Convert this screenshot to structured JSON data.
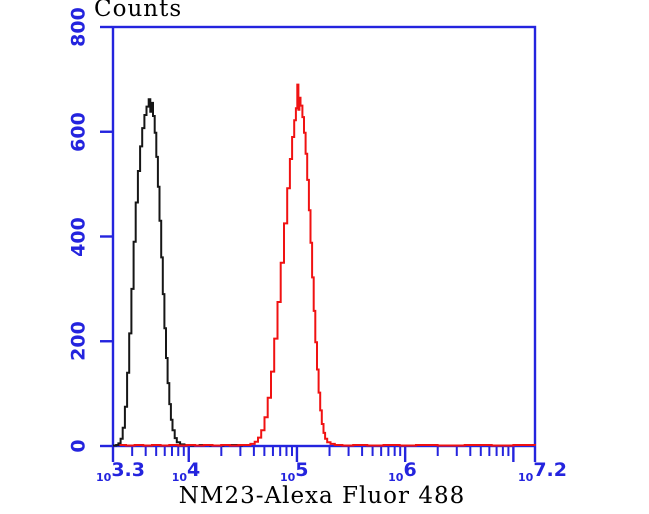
{
  "titles": {
    "y_axis": "Counts",
    "x_axis": "NM23-Alexa Fluor 488"
  },
  "colors": {
    "axis": "#2424DE",
    "tick_label": "#2424DE",
    "title_text": "#000000",
    "series_black": "#161616",
    "series_red": "#F01212",
    "background": "#FFFFFF"
  },
  "chart_data": {
    "type": "line",
    "subtype": "flow-cytometry-histogram-overlay",
    "title": "",
    "xlabel": "NM23-Alexa Fluor 488",
    "ylabel": "Counts",
    "x_scale": "log10",
    "xlim_log10": [
      3.3,
      7.2
    ],
    "ylim": [
      0,
      800
    ],
    "grid": false,
    "legend": "none",
    "x_axis": {
      "base_text": "10",
      "major_ticks_log10": [
        3.3,
        4,
        5,
        6,
        7,
        7.2
      ],
      "labels": [
        {
          "log10": 3.3,
          "exponent": "3.3"
        },
        {
          "log10": 4,
          "exponent": "4"
        },
        {
          "log10": 5,
          "exponent": "5"
        },
        {
          "log10": 6,
          "exponent": "6"
        },
        {
          "log10": 7.2,
          "exponent": "7.2"
        }
      ],
      "minor_tick_rule": "multiples 2-9 of each decade between 10^3.3 and 10^7.2"
    },
    "y_axis": {
      "ticks": [
        0,
        200,
        400,
        600,
        800
      ],
      "tick_labels": [
        "0",
        "200",
        "400",
        "600",
        "800"
      ]
    },
    "series": [
      {
        "name": "black histogram (left / control peak)",
        "color": "#161616",
        "peak_log10_x": 3.63,
        "peak_counts": 662,
        "points_log10x_counts": [
          [
            3.3,
            1
          ],
          [
            3.33,
            2
          ],
          [
            3.35,
            5
          ],
          [
            3.37,
            14
          ],
          [
            3.39,
            35
          ],
          [
            3.41,
            75
          ],
          [
            3.43,
            140
          ],
          [
            3.45,
            215
          ],
          [
            3.47,
            300
          ],
          [
            3.49,
            390
          ],
          [
            3.51,
            465
          ],
          [
            3.53,
            525
          ],
          [
            3.55,
            572
          ],
          [
            3.57,
            607
          ],
          [
            3.59,
            632
          ],
          [
            3.61,
            648
          ],
          [
            3.63,
            662
          ],
          [
            3.645,
            638
          ],
          [
            3.655,
            655
          ],
          [
            3.67,
            630
          ],
          [
            3.685,
            598
          ],
          [
            3.7,
            552
          ],
          [
            3.715,
            495
          ],
          [
            3.73,
            430
          ],
          [
            3.745,
            360
          ],
          [
            3.76,
            290
          ],
          [
            3.775,
            225
          ],
          [
            3.79,
            168
          ],
          [
            3.805,
            120
          ],
          [
            3.82,
            80
          ],
          [
            3.835,
            50
          ],
          [
            3.85,
            30
          ],
          [
            3.87,
            15
          ],
          [
            3.89,
            7
          ],
          [
            3.92,
            3
          ],
          [
            3.96,
            2
          ],
          [
            4.02,
            1
          ],
          [
            4.1,
            2
          ],
          [
            4.2,
            1
          ],
          [
            4.32,
            2
          ],
          [
            4.45,
            1
          ],
          [
            4.5,
            1
          ]
        ]
      },
      {
        "name": "red histogram (right / stained peak)",
        "color": "#F01212",
        "peak_log10_x": 5.0,
        "peak_counts": 690,
        "points_log10x_counts": [
          [
            3.36,
            2
          ],
          [
            3.42,
            1
          ],
          [
            3.5,
            2
          ],
          [
            3.58,
            1
          ],
          [
            3.66,
            2
          ],
          [
            3.74,
            1
          ],
          [
            3.82,
            2
          ],
          [
            3.9,
            1
          ],
          [
            3.98,
            2
          ],
          [
            4.06,
            1
          ],
          [
            4.14,
            2
          ],
          [
            4.22,
            1
          ],
          [
            4.3,
            2
          ],
          [
            4.38,
            1
          ],
          [
            4.46,
            2
          ],
          [
            4.52,
            2
          ],
          [
            4.57,
            4
          ],
          [
            4.61,
            8
          ],
          [
            4.64,
            16
          ],
          [
            4.67,
            30
          ],
          [
            4.7,
            55
          ],
          [
            4.73,
            92
          ],
          [
            4.76,
            142
          ],
          [
            4.79,
            205
          ],
          [
            4.82,
            275
          ],
          [
            4.85,
            350
          ],
          [
            4.88,
            425
          ],
          [
            4.91,
            492
          ],
          [
            4.935,
            548
          ],
          [
            4.955,
            590
          ],
          [
            4.975,
            622
          ],
          [
            4.99,
            645
          ],
          [
            5.003,
            690
          ],
          [
            5.013,
            642
          ],
          [
            5.023,
            665
          ],
          [
            5.033,
            650
          ],
          [
            5.05,
            628
          ],
          [
            5.065,
            598
          ],
          [
            5.08,
            558
          ],
          [
            5.095,
            508
          ],
          [
            5.11,
            450
          ],
          [
            5.125,
            388
          ],
          [
            5.14,
            322
          ],
          [
            5.155,
            258
          ],
          [
            5.17,
            198
          ],
          [
            5.185,
            146
          ],
          [
            5.2,
            102
          ],
          [
            5.215,
            68
          ],
          [
            5.23,
            42
          ],
          [
            5.245,
            25
          ],
          [
            5.26,
            14
          ],
          [
            5.28,
            7
          ],
          [
            5.31,
            4
          ],
          [
            5.35,
            2
          ],
          [
            5.42,
            1
          ],
          [
            5.52,
            2
          ],
          [
            5.65,
            1
          ],
          [
            5.8,
            2
          ],
          [
            5.95,
            1
          ],
          [
            6.1,
            2
          ],
          [
            6.3,
            1
          ],
          [
            6.55,
            2
          ],
          [
            6.8,
            1
          ],
          [
            7.0,
            2
          ],
          [
            7.2,
            1
          ]
        ]
      }
    ]
  }
}
